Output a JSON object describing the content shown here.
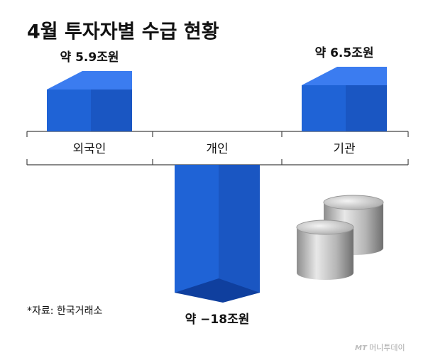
{
  "chart_data": {
    "type": "bar",
    "title": "4월 투자자별 수급 현황",
    "categories": [
      "외국인",
      "개인",
      "기관"
    ],
    "values": [
      5.9,
      -18,
      6.5
    ],
    "value_labels": [
      "약 5.9조원",
      "약 −18조원",
      "약 6.5조원"
    ],
    "color": "#1f63d6"
  },
  "source": "*자료: 한국거래소",
  "watermark_logo": "MT",
  "watermark": "머니투데이"
}
